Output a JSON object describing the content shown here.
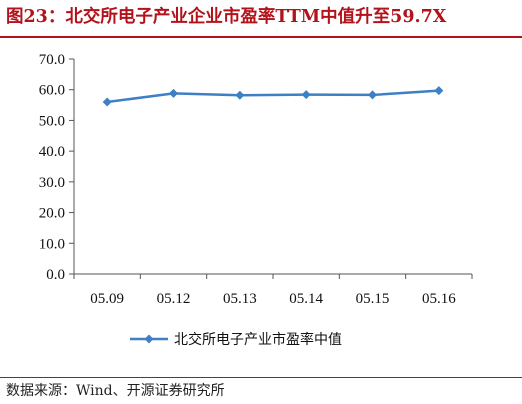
{
  "header": {
    "title": "图23：北交所电子产业企业市盈率TTM中值升至59.7X"
  },
  "source": "数据来源：Wind、开源证券研究所",
  "chart_data": {
    "type": "line",
    "title": "图23：北交所电子产业企业市盈率TTM中值升至59.7X",
    "categories": [
      "05.09",
      "05.12",
      "05.13",
      "05.14",
      "05.15",
      "05.16"
    ],
    "series": [
      {
        "name": "北交所电子产业市盈率中值",
        "values": [
          56.0,
          58.8,
          58.2,
          58.4,
          58.3,
          59.7
        ],
        "color": "#3f7fc6",
        "marker": "diamond"
      }
    ],
    "ylim": [
      0,
      70
    ],
    "yticks": [
      "0.0",
      "10.0",
      "20.0",
      "30.0",
      "40.0",
      "50.0",
      "60.0",
      "70.0"
    ],
    "grid": false,
    "legend_position": "bottom-center"
  }
}
